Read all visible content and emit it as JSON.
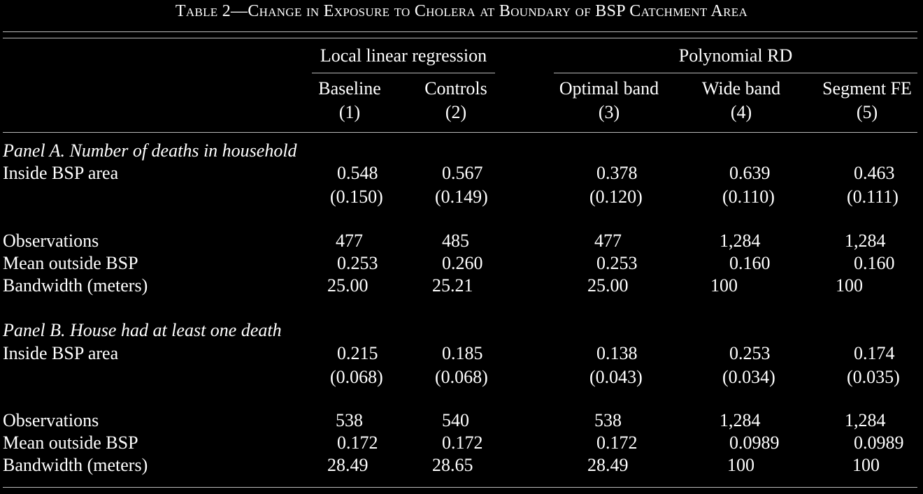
{
  "title": "Table 2—Change in Exposure to Cholera at Boundary of BSP Catchment Area",
  "groups": {
    "llr": "Local linear regression",
    "poly": "Polynomial RD"
  },
  "columns": [
    {
      "name": "Baseline",
      "num": "(1)"
    },
    {
      "name": "Controls",
      "num": "(2)"
    },
    {
      "name": "Optimal band",
      "num": "(3)"
    },
    {
      "name": "Wide band",
      "num": "(4)"
    },
    {
      "name": "Segment FE",
      "num": "(5)"
    }
  ],
  "row_labels": {
    "inside": "Inside BSP area",
    "obs": "Observations",
    "mean": "Mean outside BSP",
    "bw": "Bandwidth (meters)"
  },
  "panelA": {
    "title": "Panel A. Number of deaths in household",
    "coef": [
      "0.548",
      "0.567",
      "0.378",
      "0.639",
      "0.463"
    ],
    "se": [
      "(0.150)",
      "(0.149)",
      "(0.120)",
      "(0.110)",
      "(0.111)"
    ],
    "obs": [
      "477",
      "485",
      "477",
      "1,284",
      "1,284"
    ],
    "mean": [
      "0.253",
      "0.260",
      "0.253",
      "0.160",
      "0.160"
    ],
    "bw": [
      "25.00",
      "25.21",
      "25.00",
      "100",
      "100"
    ]
  },
  "panelB": {
    "title": "Panel B. House had at least one death",
    "coef": [
      "0.215",
      "0.185",
      "0.138",
      "0.253",
      "0.174"
    ],
    "se": [
      "(0.068)",
      "(0.068)",
      "(0.043)",
      "(0.034)",
      "(0.035)"
    ],
    "obs": [
      "538",
      "540",
      "538",
      "1,284",
      "1,284"
    ],
    "mean": [
      "0.172",
      "0.172",
      "0.172",
      "0.0989",
      "0.0989"
    ],
    "bw": [
      "28.49",
      "28.65",
      "28.49",
      "100",
      "100"
    ]
  }
}
